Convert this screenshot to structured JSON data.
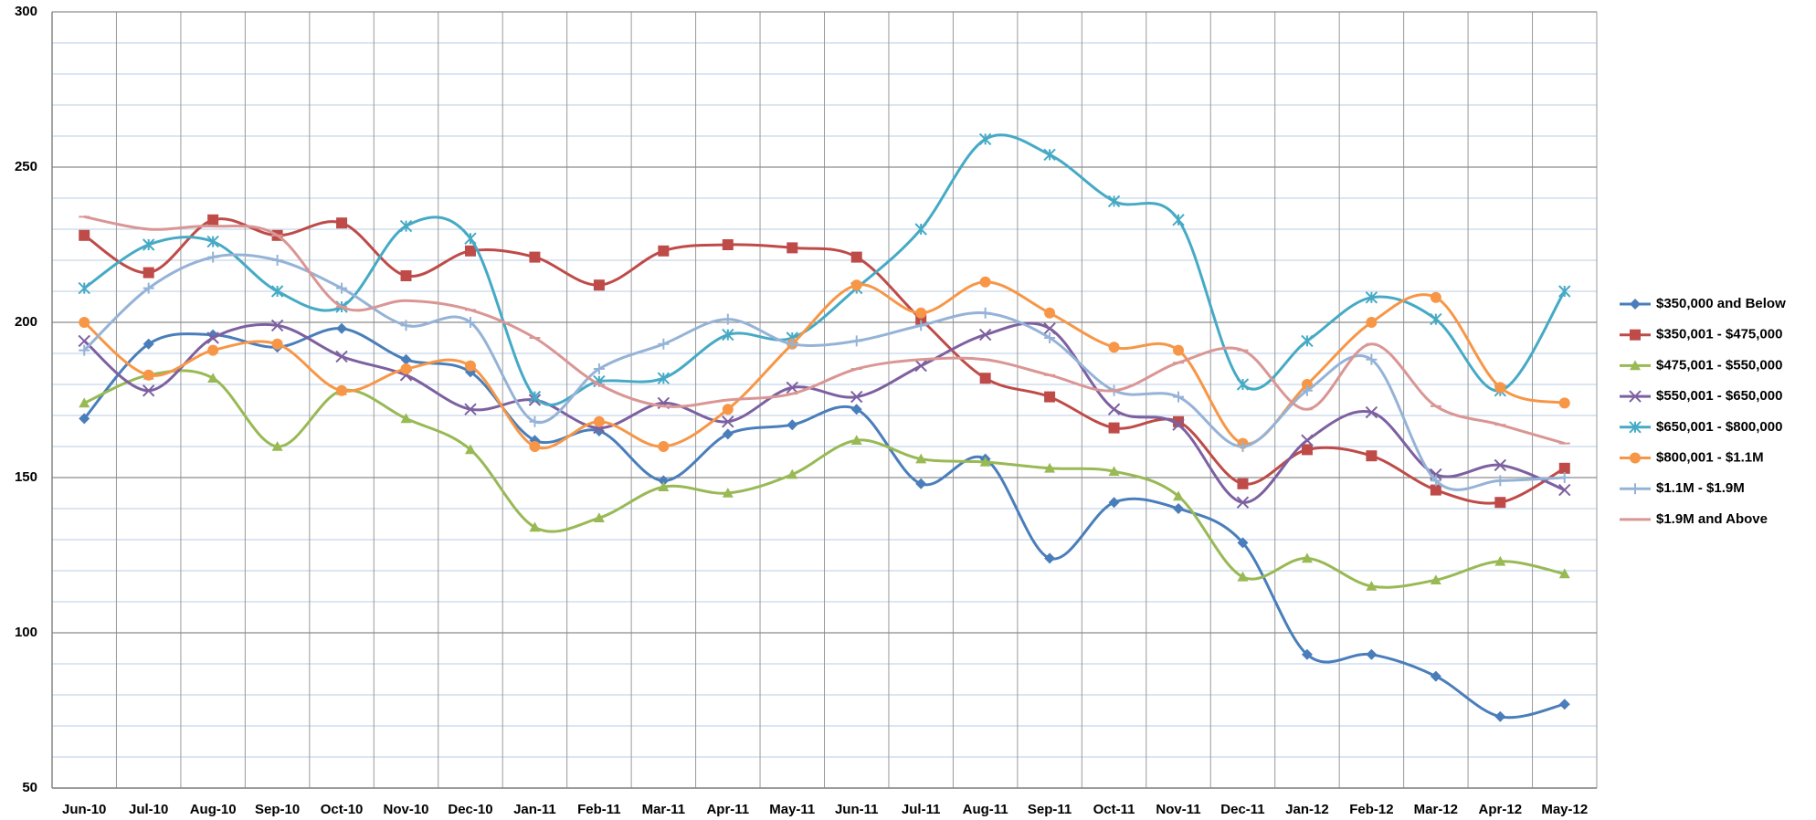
{
  "chart_data": {
    "type": "line",
    "categories": [
      "Jun-10",
      "Jul-10",
      "Aug-10",
      "Sep-10",
      "Oct-10",
      "Nov-10",
      "Dec-10",
      "Jan-11",
      "Feb-11",
      "Mar-11",
      "Apr-11",
      "May-11",
      "Jun-11",
      "Jul-11",
      "Aug-11",
      "Sep-11",
      "Oct-11",
      "Nov-11",
      "Dec-11",
      "Jan-12",
      "Feb-12",
      "Mar-12",
      "Apr-12",
      "May-12"
    ],
    "ylim": [
      50,
      300
    ],
    "yticks": [
      50,
      100,
      150,
      200,
      250,
      300
    ],
    "grid": true,
    "minor_grid": true,
    "smooth": true,
    "legend": "right",
    "series": [
      {
        "name": "$350,000 and Below",
        "color": "#4a7ebb",
        "marker": "diamond",
        "values": [
          169,
          193,
          196,
          192,
          198,
          188,
          184,
          162,
          165,
          149,
          164,
          167,
          172,
          148,
          156,
          124,
          142,
          140,
          129,
          93,
          93,
          86,
          73,
          77
        ]
      },
      {
        "name": "$350,001 - $475,000",
        "color": "#be4b48",
        "marker": "square",
        "values": [
          228,
          216,
          233,
          228,
          232,
          215,
          223,
          221,
          212,
          223,
          225,
          224,
          221,
          201,
          182,
          176,
          166,
          168,
          148,
          159,
          157,
          146,
          142,
          153
        ]
      },
      {
        "name": "$475,001 - $550,000",
        "color": "#98b954",
        "marker": "triangle",
        "values": [
          174,
          183,
          182,
          160,
          178,
          169,
          159,
          134,
          137,
          147,
          145,
          151,
          162,
          156,
          155,
          153,
          152,
          144,
          118,
          124,
          115,
          117,
          123,
          119
        ]
      },
      {
        "name": "$550,001 - $650,000",
        "color": "#7d60a0",
        "marker": "x",
        "values": [
          194,
          178,
          195,
          199,
          189,
          183,
          172,
          175,
          166,
          174,
          168,
          179,
          176,
          186,
          196,
          198,
          172,
          167,
          142,
          162,
          171,
          151,
          154,
          146
        ]
      },
      {
        "name": "$650,001 - $800,000",
        "color": "#46aac5",
        "marker": "star",
        "values": [
          211,
          225,
          226,
          210,
          205,
          231,
          227,
          176,
          181,
          182,
          196,
          195,
          211,
          230,
          259,
          254,
          239,
          233,
          180,
          194,
          208,
          201,
          178,
          210
        ]
      },
      {
        "name": "$800,001 - $1.1M",
        "color": "#f79646",
        "marker": "circle",
        "values": [
          200,
          183,
          191,
          193,
          178,
          185,
          186,
          160,
          168,
          160,
          172,
          193,
          212,
          203,
          213,
          203,
          192,
          191,
          161,
          180,
          200,
          208,
          179,
          174
        ]
      },
      {
        "name": "$1.1M - $1.9M",
        "color": "#95b3d7",
        "marker": "plus",
        "values": [
          191,
          211,
          221,
          220,
          211,
          199,
          200,
          168,
          185,
          193,
          201,
          193,
          194,
          199,
          203,
          195,
          178,
          176,
          160,
          178,
          188,
          149,
          149,
          150
        ]
      },
      {
        "name": "$1.9M and Above",
        "color": "#d99694",
        "marker": "dash",
        "values": [
          234,
          230,
          231,
          228,
          205,
          207,
          204,
          195,
          180,
          173,
          175,
          177,
          185,
          188,
          188,
          183,
          178,
          187,
          191,
          172,
          193,
          173,
          167,
          161
        ]
      }
    ]
  }
}
